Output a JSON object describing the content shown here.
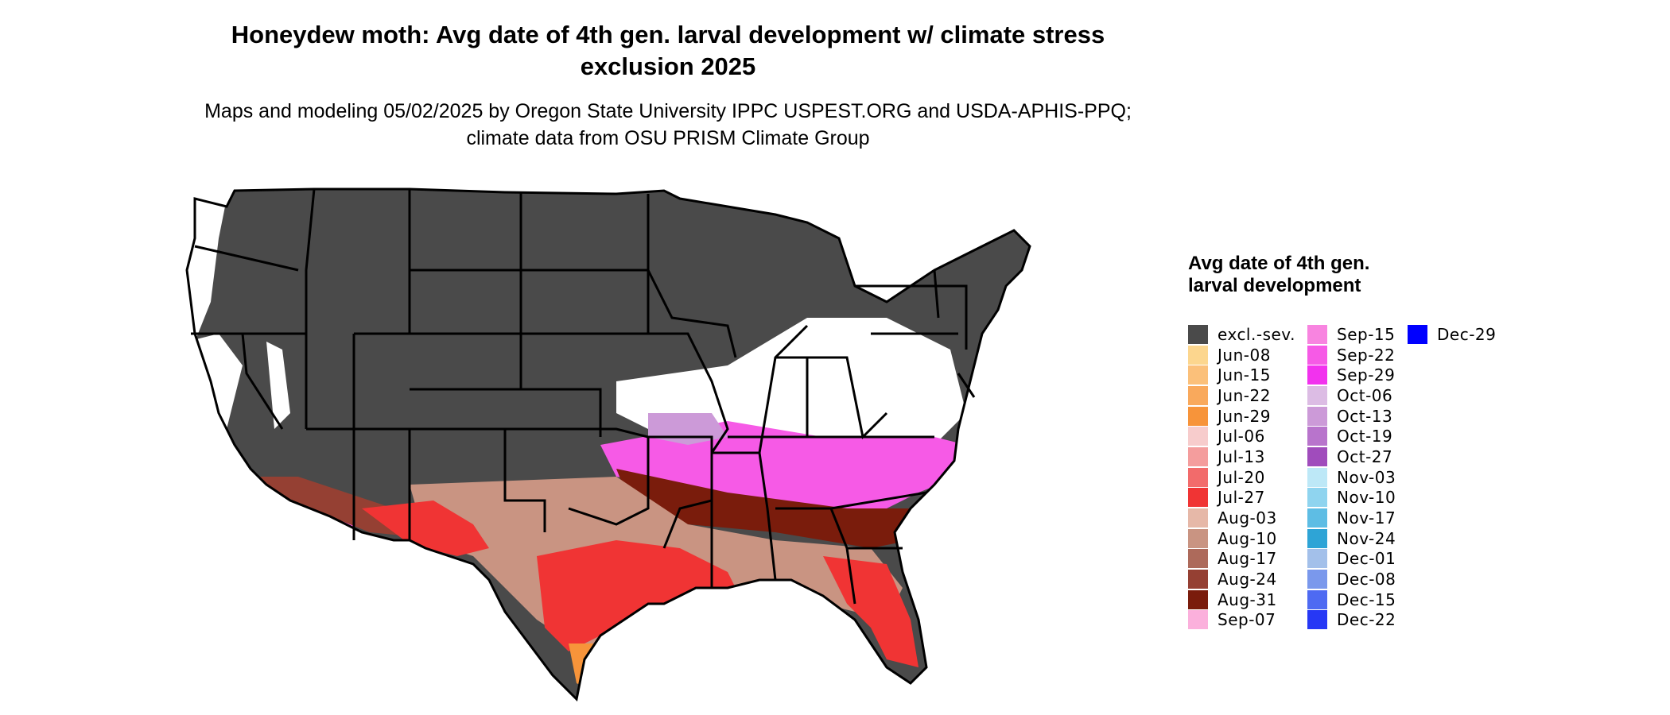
{
  "title": "Honeydew moth: Avg date of 4th gen. larval development w/ climate stress exclusion 2025",
  "subtitle": "Maps and modeling 05/02/2025 by Oregon State University IPPC USPEST.ORG and USDA-APHIS-PPQ; climate data from OSU PRISM Climate Group",
  "legend": {
    "title": "Avg date of 4th gen. larval development",
    "items": [
      {
        "label": "excl.-sev.",
        "color": "#4a4a4a"
      },
      {
        "label": "Jun-08",
        "color": "#fcd68e"
      },
      {
        "label": "Jun-15",
        "color": "#fbc07a"
      },
      {
        "label": "Jun-22",
        "color": "#f9a95c"
      },
      {
        "label": "Jun-29",
        "color": "#f7943a"
      },
      {
        "label": "Jul-06",
        "color": "#f7cccc"
      },
      {
        "label": "Jul-13",
        "color": "#f49d9d"
      },
      {
        "label": "Jul-20",
        "color": "#f26b6b"
      },
      {
        "label": "Jul-27",
        "color": "#f03434"
      },
      {
        "label": "Aug-03",
        "color": "#e6b8a8"
      },
      {
        "label": "Aug-10",
        "color": "#c99482"
      },
      {
        "label": "Aug-17",
        "color": "#ad6a5b"
      },
      {
        "label": "Aug-24",
        "color": "#954033"
      },
      {
        "label": "Aug-31",
        "color": "#7a1c0c"
      },
      {
        "label": "Sep-07",
        "color": "#fbb0dc"
      },
      {
        "label": "Sep-15",
        "color": "#f884e0"
      },
      {
        "label": "Sep-22",
        "color": "#f65ae6"
      },
      {
        "label": "Sep-29",
        "color": "#f232ee"
      },
      {
        "label": "Oct-06",
        "color": "#dcbce4"
      },
      {
        "label": "Oct-13",
        "color": "#cc9ad8"
      },
      {
        "label": "Oct-19",
        "color": "#b874cc"
      },
      {
        "label": "Oct-27",
        "color": "#a04cbc"
      },
      {
        "label": "Nov-03",
        "color": "#bde8f7"
      },
      {
        "label": "Nov-10",
        "color": "#8fd4ef"
      },
      {
        "label": "Nov-17",
        "color": "#5ebde4"
      },
      {
        "label": "Nov-24",
        "color": "#2ea4d6"
      },
      {
        "label": "Dec-01",
        "color": "#a3c0ea"
      },
      {
        "label": "Dec-08",
        "color": "#7a98ec"
      },
      {
        "label": "Dec-15",
        "color": "#4e6af2"
      },
      {
        "label": "Dec-22",
        "color": "#2638f5"
      },
      {
        "label": "Dec-29",
        "color": "#0000ff"
      }
    ]
  }
}
